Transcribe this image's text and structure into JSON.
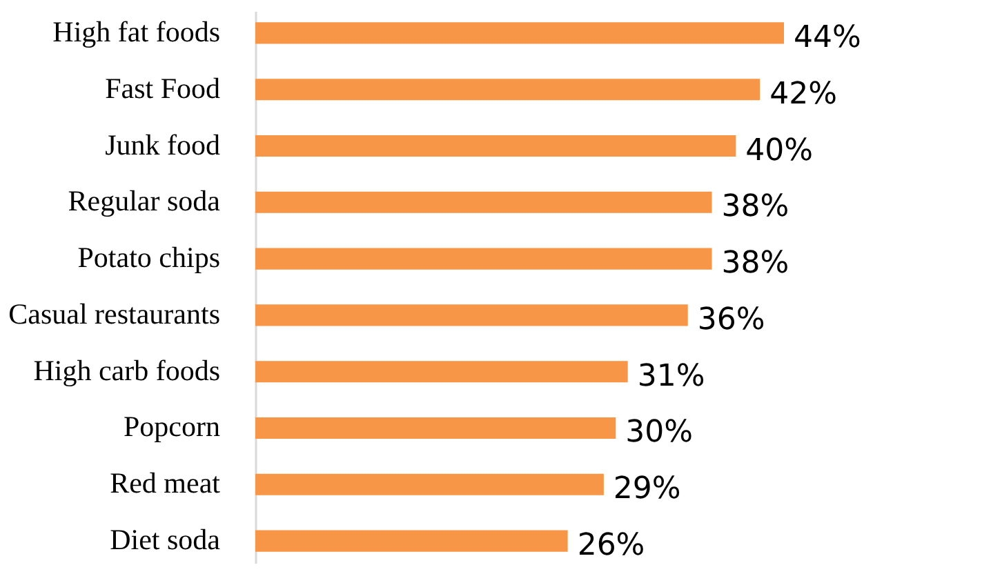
{
  "chart_data": {
    "type": "bar",
    "orientation": "horizontal",
    "categories": [
      "High fat foods",
      "Fast Food",
      "Junk food",
      "Regular soda",
      "Potato chips",
      "Casual restaurants",
      "High carb foods",
      "Popcorn",
      "Red meat",
      "Diet soda"
    ],
    "values": [
      44,
      42,
      40,
      38,
      38,
      36,
      31,
      30,
      29,
      26
    ],
    "value_labels": [
      "44%",
      "42%",
      "40%",
      "38%",
      "38%",
      "36%",
      "31%",
      "30%",
      "29%",
      "26%"
    ],
    "color": "#f79646"
  }
}
